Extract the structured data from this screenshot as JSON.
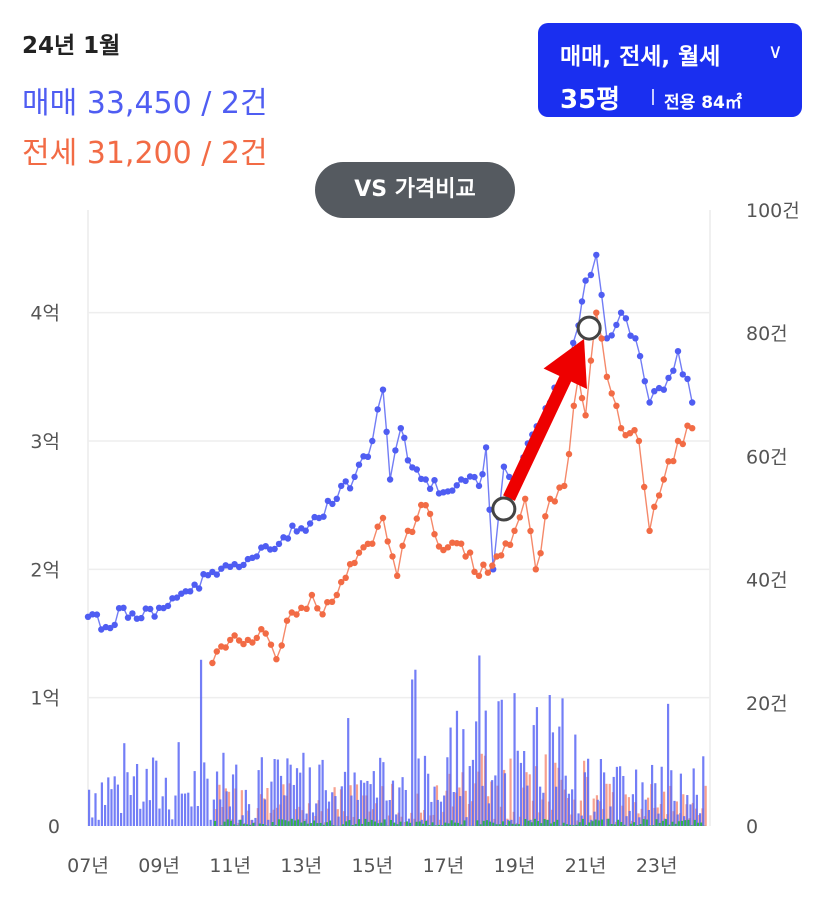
{
  "header": {
    "date": "24년 1월",
    "sale_summary": "매매 33,450 / 2건",
    "jeonse_summary": "전세 31,200 / 2건"
  },
  "filter": {
    "types_label": "매매, 전세, 월세",
    "size_label": "35평",
    "area_label": "전용 84㎡"
  },
  "compare_button": "VS 가격비교",
  "colors": {
    "sale": "#4f5df2",
    "jeonse": "#f26b45",
    "monthly": "#36b24a",
    "accent": "#1a2ff0",
    "arrow": "#ee0000"
  },
  "chart_data": {
    "type": "line",
    "x_ticks": [
      "07년",
      "09년",
      "11년",
      "13년",
      "15년",
      "17년",
      "19년",
      "21년",
      "23년"
    ],
    "y_left_ticks": [
      "0",
      "1억",
      "2억",
      "3억",
      "4억"
    ],
    "y_right_ticks": [
      "0",
      "20건",
      "40건",
      "60건",
      "80건",
      "100건"
    ],
    "ylim_left": [
      0,
      4.8
    ],
    "ylim_right": [
      0,
      100
    ],
    "xlim": [
      2007,
      2024.5
    ],
    "series": [
      {
        "key": "sale",
        "color": "#4f5df2",
        "points": [
          [
            2007.0,
            1.63
          ],
          [
            2007.5,
            1.55
          ],
          [
            2008.0,
            1.7
          ],
          [
            2008.5,
            1.62
          ],
          [
            2009.0,
            1.7
          ],
          [
            2009.5,
            1.78
          ],
          [
            2010.0,
            1.88
          ],
          [
            2010.5,
            1.98
          ],
          [
            2011.0,
            2.02
          ],
          [
            2011.5,
            2.08
          ],
          [
            2012.0,
            2.18
          ],
          [
            2012.5,
            2.25
          ],
          [
            2013.0,
            2.32
          ],
          [
            2013.5,
            2.4
          ],
          [
            2014.0,
            2.55
          ],
          [
            2014.5,
            2.72
          ],
          [
            2015.0,
            3.0
          ],
          [
            2015.3,
            3.4
          ],
          [
            2015.5,
            2.7
          ],
          [
            2015.8,
            3.1
          ],
          [
            2016.0,
            2.85
          ],
          [
            2016.5,
            2.7
          ],
          [
            2017.0,
            2.6
          ],
          [
            2017.5,
            2.7
          ],
          [
            2018.0,
            2.65
          ],
          [
            2018.2,
            2.95
          ],
          [
            2018.4,
            2.0
          ],
          [
            2018.7,
            2.8
          ],
          [
            2019.0,
            2.7
          ],
          [
            2019.5,
            3.05
          ],
          [
            2020.0,
            3.3
          ],
          [
            2020.5,
            3.55
          ],
          [
            2020.8,
            3.9
          ],
          [
            2021.0,
            4.25
          ],
          [
            2021.3,
            4.45
          ],
          [
            2021.6,
            3.8
          ],
          [
            2022.0,
            4.0
          ],
          [
            2022.4,
            3.8
          ],
          [
            2022.8,
            3.3
          ],
          [
            2023.2,
            3.4
          ],
          [
            2023.6,
            3.7
          ],
          [
            2024.0,
            3.3
          ]
        ]
      },
      {
        "key": "jeonse",
        "color": "#f26b45",
        "points": [
          [
            2010.5,
            1.27
          ],
          [
            2011.0,
            1.45
          ],
          [
            2011.5,
            1.45
          ],
          [
            2012.0,
            1.5
          ],
          [
            2012.3,
            1.3
          ],
          [
            2012.6,
            1.6
          ],
          [
            2013.0,
            1.7
          ],
          [
            2013.3,
            1.8
          ],
          [
            2013.6,
            1.65
          ],
          [
            2014.0,
            1.8
          ],
          [
            2014.5,
            2.05
          ],
          [
            2015.0,
            2.2
          ],
          [
            2015.3,
            2.4
          ],
          [
            2015.7,
            1.95
          ],
          [
            2016.0,
            2.3
          ],
          [
            2016.5,
            2.5
          ],
          [
            2017.0,
            2.15
          ],
          [
            2017.5,
            2.2
          ],
          [
            2018.0,
            1.95
          ],
          [
            2018.5,
            2.1
          ],
          [
            2019.0,
            2.3
          ],
          [
            2019.3,
            2.55
          ],
          [
            2019.6,
            2.0
          ],
          [
            2020.0,
            2.55
          ],
          [
            2020.4,
            2.65
          ],
          [
            2020.8,
            3.5
          ],
          [
            2021.0,
            3.2
          ],
          [
            2021.3,
            4.0
          ],
          [
            2021.6,
            3.5
          ],
          [
            2022.0,
            3.1
          ],
          [
            2022.5,
            3.0
          ],
          [
            2022.8,
            2.3
          ],
          [
            2023.2,
            2.7
          ],
          [
            2023.6,
            3.0
          ],
          [
            2024.0,
            3.1
          ]
        ]
      }
    ],
    "arrow": {
      "from": [
        2018.7,
        2.47
      ],
      "to": [
        2021.1,
        3.88
      ]
    }
  }
}
